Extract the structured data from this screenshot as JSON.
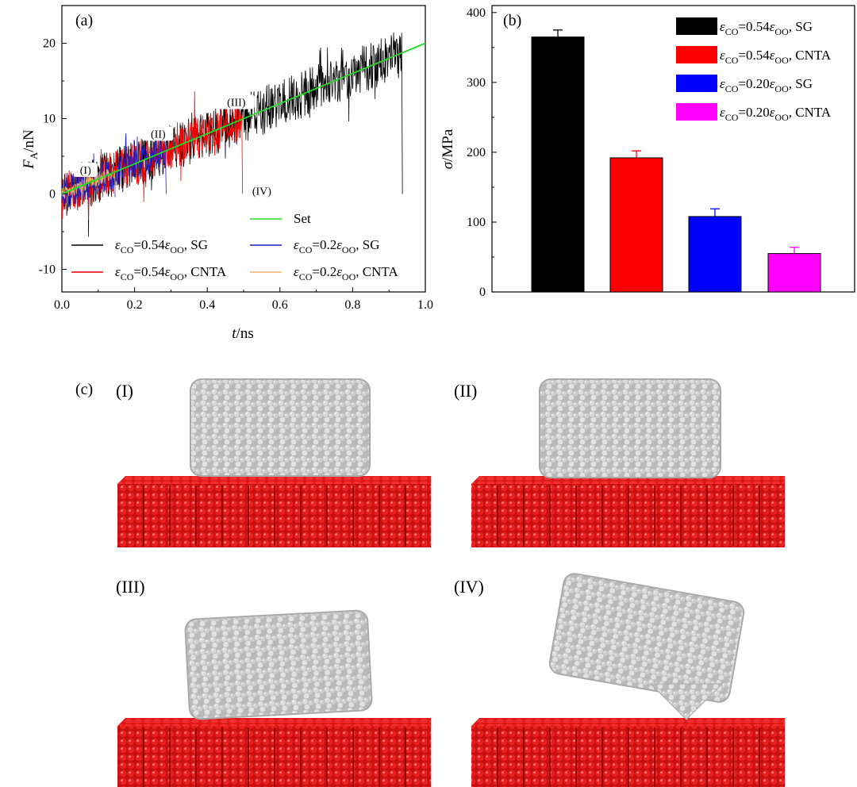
{
  "chart_data": [
    {
      "panel": "(a)",
      "type": "line",
      "xlabel": "t/ns",
      "ylabel": "F_A/nN",
      "xlim": [
        0.0,
        1.0
      ],
      "ylim": [
        -13,
        25
      ],
      "xticks": [
        "0.0",
        "0.2",
        "0.4",
        "0.6",
        "0.8",
        "1.0"
      ],
      "yticks": [
        "-10",
        "0",
        "10",
        "20"
      ],
      "series": [
        {
          "name": "εCO=0.54εOO, SG",
          "color": "#000000",
          "x_end": 0.935,
          "noise": 3.2
        },
        {
          "name": "εCO=0.54εOO, CNTA",
          "color": "#ff0000",
          "x_end": 0.495,
          "noise": 2.8
        },
        {
          "name": "εCO=0.2εOO, SG",
          "color": "#1f1fbf",
          "x_end": 0.285,
          "noise": 2.2
        },
        {
          "name": "εCO=0.2εOO, CNTA",
          "color": "#f0b060",
          "x_end": 0.145,
          "noise": 0.9
        },
        {
          "name": "Set",
          "color": "#22dd22",
          "x": [
            0.0,
            1.0
          ],
          "y": [
            0.0,
            20.0
          ]
        }
      ],
      "slope_nN_per_ns": 20,
      "annotations": [
        {
          "text": "(I)",
          "x": 0.065,
          "y": 3.0
        },
        {
          "text": "(II)",
          "x": 0.265,
          "y": 7.8
        },
        {
          "text": "(III)",
          "x": 0.48,
          "y": 12.0
        },
        {
          "text": "(IV)",
          "x": 0.55,
          "y": 0.2
        }
      ],
      "legend_position": "bottom"
    },
    {
      "panel": "(b)",
      "type": "bar",
      "ylabel": "σ/MPa",
      "ylim": [
        0,
        410
      ],
      "yticks": [
        "0",
        "100",
        "200",
        "300",
        "400"
      ],
      "categories": [
        "εCO=0.54εOO, SG",
        "εCO=0.54εOO, CNTA",
        "εCO=0.20εOO, SG",
        "εCO=0.20εOO, CNTA"
      ],
      "values": [
        365,
        192,
        108,
        55
      ],
      "errors": [
        10,
        10,
        11,
        9
      ],
      "colors": [
        "#000000",
        "#ff0000",
        "#0000ff",
        "#ff00ff"
      ],
      "legend_position": "top-right"
    }
  ],
  "panel_c": {
    "label": "(c)",
    "snapshots": [
      "(I)",
      "(II)",
      "(III)",
      "(IV)"
    ],
    "substrate_color": "#dd1111",
    "cluster_color": "#c8c8c8"
  }
}
